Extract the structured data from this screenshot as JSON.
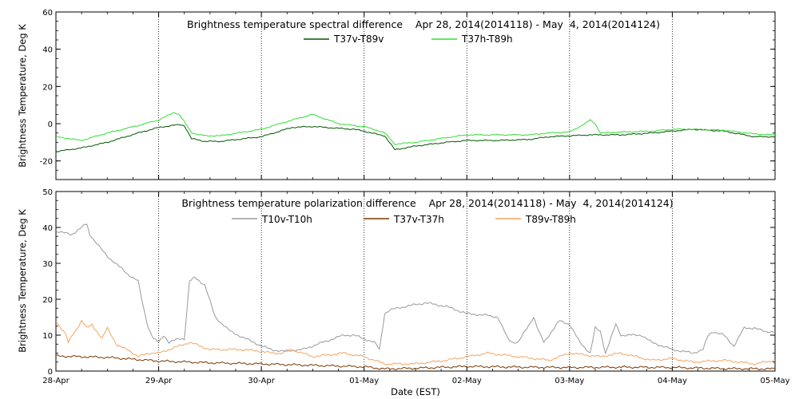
{
  "chart_data": [
    {
      "type": "line",
      "title": "Brightness temperature spectral difference    Apr 28, 2014(2014118) - May  4, 2014(2014124)",
      "ylabel": "Brightness Temperature, Deg K",
      "xlabel": "",
      "ylim": [
        -30,
        60
      ],
      "yticks": [
        -20,
        0,
        20,
        40,
        60
      ],
      "xlim": [
        0,
        7
      ],
      "series": [
        {
          "name": "T37v-T89v",
          "color": "#005500",
          "x": [
            0,
            0.25,
            0.5,
            0.8,
            1.0,
            1.2,
            1.25,
            1.32,
            1.45,
            1.6,
            2.0,
            2.3,
            2.5,
            2.75,
            2.9,
            3.0,
            3.15,
            3.2,
            3.3,
            3.5,
            3.8,
            4.0,
            4.3,
            4.6,
            4.8,
            5.0,
            5.2,
            5.5,
            5.8,
            6.0,
            6.2,
            6.5,
            6.8,
            7.0
          ],
          "y": [
            -15,
            -13,
            -10,
            -5,
            -2,
            -0.5,
            -1,
            -8,
            -9.5,
            -9.5,
            -7,
            -2,
            -1.5,
            -2.5,
            -3,
            -4,
            -6,
            -6.5,
            -14,
            -12,
            -10,
            -9,
            -9,
            -8.5,
            -7,
            -6.5,
            -6,
            -6,
            -5,
            -4,
            -3,
            -4,
            -7,
            -7
          ]
        },
        {
          "name": "T37h-T89h",
          "color": "#33dd33",
          "x": [
            0,
            0.25,
            0.5,
            0.8,
            1.0,
            1.15,
            1.2,
            1.25,
            1.32,
            1.45,
            1.6,
            2.0,
            2.3,
            2.5,
            2.75,
            2.9,
            3.0,
            3.15,
            3.2,
            3.3,
            3.5,
            3.8,
            4.0,
            4.3,
            4.6,
            4.8,
            5.0,
            5.15,
            5.2,
            5.25,
            5.3,
            5.5,
            5.8,
            6.0,
            6.2,
            6.5,
            6.8,
            7.0
          ],
          "y": [
            -7,
            -9,
            -5,
            -1,
            2,
            6,
            5,
            1,
            -5,
            -6.5,
            -6.5,
            -3,
            2,
            5,
            0,
            -1,
            -1.5,
            -4,
            -5,
            -11,
            -10,
            -7.5,
            -6,
            -6,
            -6,
            -5,
            -4.5,
            0,
            2,
            0,
            -5,
            -4.5,
            -4,
            -3,
            -3,
            -3.5,
            -5.5,
            -6
          ]
        }
      ]
    },
    {
      "type": "line",
      "title": "Brightness temperature polarization difference    Apr 28, 2014(2014118) - May  4, 2014(2014124)",
      "ylabel": "Brightness Temperature, Deg K",
      "xlabel": "Date (EST)",
      "ylim": [
        0,
        50
      ],
      "yticks": [
        0,
        10,
        20,
        30,
        40,
        50
      ],
      "xlim": [
        0,
        7
      ],
      "xticks": [
        "28-Apr",
        "29-Apr",
        "30-Apr",
        "01-May",
        "02-May",
        "03-May",
        "04-May",
        "05-May"
      ],
      "series": [
        {
          "name": "T10v-T10h",
          "color": "#999999",
          "x": [
            0,
            0.15,
            0.25,
            0.3,
            0.33,
            0.38,
            0.5,
            0.7,
            0.8,
            0.85,
            0.9,
            0.95,
            1.0,
            1.05,
            1.1,
            1.2,
            1.25,
            1.3,
            1.35,
            1.45,
            1.55,
            1.7,
            1.85,
            2.0,
            2.1,
            2.2,
            2.4,
            2.6,
            2.8,
            2.9,
            3.0,
            3.1,
            3.15,
            3.2,
            3.25,
            3.4,
            3.6,
            3.8,
            4.0,
            4.2,
            4.3,
            4.4,
            4.45,
            4.5,
            4.65,
            4.7,
            4.75,
            4.9,
            5.0,
            5.1,
            5.2,
            5.25,
            5.3,
            5.35,
            5.45,
            5.5,
            5.6,
            5.7,
            5.8,
            6.0,
            6.2,
            6.3,
            6.35,
            6.4,
            6.5,
            6.6,
            6.7,
            6.8,
            6.9,
            7.0
          ],
          "y": [
            39,
            38,
            40,
            41,
            38,
            36,
            32,
            27,
            25,
            18,
            12,
            9,
            8,
            10,
            8,
            9,
            9,
            25,
            26,
            24,
            15,
            11,
            9,
            7,
            6,
            5.5,
            6,
            8,
            10,
            10,
            9,
            8,
            6,
            16,
            17,
            18,
            19,
            18,
            16,
            15.5,
            15,
            9,
            8,
            8,
            15,
            11,
            8,
            14,
            13,
            8,
            5,
            12,
            11,
            5,
            13,
            10,
            10,
            10,
            8,
            6,
            5,
            6,
            10,
            11,
            10,
            7,
            12,
            12,
            11,
            11
          ]
        },
        {
          "name": "T37v-T37h",
          "color": "#7a3800",
          "x": [
            0,
            0.5,
            1.0,
            1.5,
            2.0,
            2.5,
            3.0,
            3.2,
            3.5,
            4.0,
            4.5,
            5.0,
            5.5,
            6.0,
            6.5,
            7.0
          ],
          "y": [
            4.2,
            3.8,
            2.8,
            2.3,
            2.0,
            1.6,
            1.2,
            0.6,
            0.8,
            1.3,
            1.1,
            1.0,
            1.1,
            1.0,
            0.7,
            0.6
          ]
        },
        {
          "name": "T89v-T89h",
          "color": "#f4a460",
          "x": [
            0,
            0.1,
            0.12,
            0.25,
            0.3,
            0.35,
            0.45,
            0.5,
            0.6,
            0.7,
            0.8,
            0.9,
            1.0,
            1.2,
            1.3,
            1.5,
            1.8,
            2.0,
            2.1,
            2.2,
            2.3,
            2.5,
            2.8,
            3.0,
            3.2,
            3.5,
            3.8,
            4.0,
            4.2,
            4.5,
            4.8,
            5.0,
            5.3,
            5.5,
            5.8,
            6.0,
            6.2,
            6.5,
            6.8,
            7.0
          ],
          "y": [
            14,
            10,
            8,
            14,
            12,
            13,
            9,
            12,
            7,
            6,
            4,
            5,
            5,
            7,
            8,
            6,
            6,
            5.5,
            5,
            5,
            6,
            4,
            5,
            4,
            2,
            2,
            3,
            4,
            5,
            4,
            3,
            5,
            4,
            5,
            3,
            3.5,
            2.5,
            3,
            2,
            3
          ]
        }
      ]
    }
  ]
}
